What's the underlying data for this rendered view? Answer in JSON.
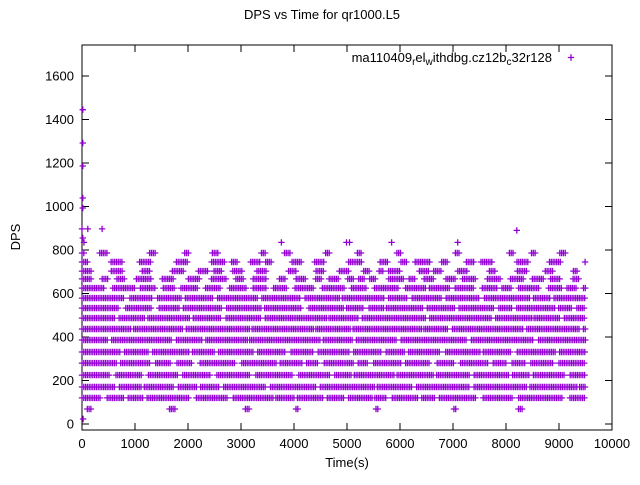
{
  "chart_data": {
    "type": "scatter",
    "title": "DPS vs Time for qr1000.L5",
    "xlabel": "Time(s)",
    "ylabel": "DPS",
    "xlim": [
      0,
      10000
    ],
    "ylim": [
      -28,
      1743
    ],
    "xticks": [
      0,
      1000,
      2000,
      3000,
      4000,
      5000,
      6000,
      7000,
      8000,
      9000,
      10000
    ],
    "yticks": [
      0,
      200,
      400,
      600,
      800,
      1000,
      1200,
      1400,
      1600
    ],
    "grid": false,
    "legend_position": "top-right-inside",
    "series": [
      {
        "name": "ma110409_rel_withdbg.cz12b_c32r128",
        "legend_segments": [
          {
            "text": "ma110409",
            "sub": "r"
          },
          {
            "text": "el",
            "sub": "w"
          },
          {
            "text": "ithdbg.cz12b",
            "sub": "c"
          },
          {
            "text": "32r128",
            "sub": ""
          }
        ],
        "marker": "plus",
        "color": "#9400D3",
        "seed": 7,
        "bands": [
          {
            "dps": 786,
            "t0": 0,
            "t1": 9500,
            "run": [
              3,
              8
            ],
            "gap": [
              12,
              55
            ]
          },
          {
            "dps": 745,
            "t0": 0,
            "t1": 9500,
            "run": [
              5,
              16
            ],
            "gap": [
              5,
              25
            ]
          },
          {
            "dps": 703,
            "t0": 0,
            "t1": 9500,
            "run": [
              4,
              12
            ],
            "gap": [
              5,
              22
            ]
          },
          {
            "dps": 667,
            "t0": 0,
            "t1": 9500,
            "run": [
              5,
              16
            ],
            "gap": [
              4,
              14
            ]
          },
          {
            "dps": 625,
            "t0": 0,
            "t1": 9500,
            "run": [
              8,
              26
            ],
            "gap": [
              3,
              9
            ]
          },
          {
            "dps": 579,
            "t0": 0,
            "t1": 9500,
            "run": [
              14,
              48
            ],
            "gap": [
              2,
              6
            ]
          },
          {
            "dps": 533,
            "t0": 0,
            "t1": 9500,
            "run": [
              12,
              40
            ],
            "gap": [
              2,
              7
            ]
          },
          {
            "dps": 487,
            "t0": 0,
            "t1": 9500,
            "run": [
              20,
              70
            ],
            "gap": [
              2,
              5
            ]
          },
          {
            "dps": 437,
            "t0": 0,
            "t1": 9500,
            "run": [
              22,
              75
            ],
            "gap": [
              2,
              5
            ]
          },
          {
            "dps": 386,
            "t0": 0,
            "t1": 9500,
            "run": [
              22,
              75
            ],
            "gap": [
              2,
              5
            ]
          },
          {
            "dps": 331,
            "t0": 0,
            "t1": 9500,
            "run": [
              14,
              48
            ],
            "gap": [
              2,
              6
            ]
          },
          {
            "dps": 280,
            "t0": 0,
            "t1": 9500,
            "run": [
              10,
              36
            ],
            "gap": [
              3,
              8
            ]
          },
          {
            "dps": 225,
            "t0": 0,
            "t1": 9500,
            "run": [
              12,
              40
            ],
            "gap": [
              2,
              7
            ]
          },
          {
            "dps": 170,
            "t0": 0,
            "t1": 9500,
            "run": [
              18,
              65
            ],
            "gap": [
              2,
              5
            ]
          },
          {
            "dps": 120,
            "t0": 0,
            "t1": 9500,
            "run": [
              12,
              45
            ],
            "gap": [
              2,
              7
            ]
          },
          {
            "dps": 69,
            "t0": 100,
            "t1": 8500,
            "run": [
              2,
              6
            ],
            "gap": [
              25,
              90
            ]
          }
        ],
        "outliers": [
          [
            15,
            1445
          ],
          [
            15,
            1292
          ],
          [
            15,
            1186
          ],
          [
            15,
            1039
          ],
          [
            15,
            993
          ],
          [
            0,
            897
          ],
          [
            110,
            897
          ],
          [
            380,
            897
          ],
          [
            8204,
            890
          ],
          [
            15,
            855
          ],
          [
            38,
            835
          ],
          [
            3762,
            835
          ],
          [
            4991,
            835
          ],
          [
            5047,
            835
          ],
          [
            5841,
            835
          ],
          [
            7089,
            835
          ],
          [
            20,
            23
          ]
        ]
      }
    ]
  }
}
